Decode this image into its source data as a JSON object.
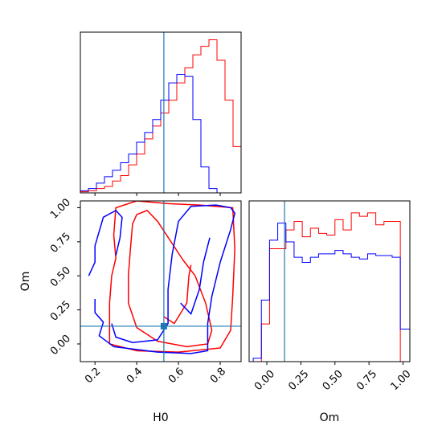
{
  "chart_data": {
    "type": "corner",
    "parameters": [
      "H0",
      "Om"
    ],
    "truth": {
      "H0": 0.53,
      "Om": 0.13
    },
    "colors": {
      "series_a": "#ff0000",
      "series_b": "#0000ff",
      "truth": "#1f77b4"
    },
    "axes": {
      "H0": {
        "range": [
          0.13,
          0.9
        ],
        "ticks": [
          0.2,
          0.4,
          0.6,
          0.8
        ],
        "tick_labels": [
          "0.2",
          "0.4",
          "0.6",
          "0.8"
        ],
        "label": "H0"
      },
      "Om": {
        "range": [
          -0.13,
          1.05
        ],
        "ticks": [
          0.0,
          0.25,
          0.5,
          0.75,
          1.0
        ],
        "tick_labels": [
          "0.00",
          "0.25",
          "0.50",
          "0.75",
          "1.00"
        ],
        "label": "Om"
      }
    },
    "hist_H0": {
      "bin_edges": [
        0.13,
        0.1685,
        0.207,
        0.2455,
        0.284,
        0.3225,
        0.361,
        0.3995,
        0.438,
        0.4765,
        0.515,
        0.5535,
        0.592,
        0.6305,
        0.669,
        0.7075,
        0.746,
        0.7845,
        0.823,
        0.8615,
        0.9
      ],
      "series": [
        {
          "values": [
            0.1,
            0.2,
            0.4,
            0.6,
            1.1,
            1.6,
            2.6,
            3.6,
            5.0,
            6.2,
            7.4,
            8.6,
            10.2,
            11.6,
            12.8,
            13.6,
            14.2,
            12.3,
            8.6,
            4.3
          ]
        },
        {
          "values": [
            0.2,
            0.4,
            0.9,
            1.5,
            2.1,
            2.8,
            3.6,
            4.7,
            5.6,
            6.8,
            8.6,
            10.2,
            11.0,
            10.8,
            6.8,
            2.4,
            0.4,
            0.0,
            0.0,
            0.0
          ]
        }
      ]
    },
    "hist_Om": {
      "bin_edges": [
        -0.1,
        -0.04,
        0.02,
        0.08,
        0.14,
        0.2,
        0.26,
        0.32,
        0.38,
        0.44,
        0.5,
        0.56,
        0.62,
        0.68,
        0.74,
        0.8,
        0.86,
        0.92,
        0.98,
        1.05
      ],
      "series": [
        {
          "values": [
            0.0,
            2.2,
            6.6,
            6.6,
            7.7,
            8.2,
            7.3,
            7.8,
            7.5,
            7.4,
            8.3,
            7.7,
            8.7,
            8.5,
            8.7,
            8.0,
            8.2,
            8.2,
            0.0
          ]
        },
        {
          "values": [
            0.2,
            3.6,
            7.1,
            8.1,
            7.0,
            6.1,
            5.8,
            6.1,
            6.3,
            6.3,
            6.5,
            6.3,
            6.1,
            6.0,
            6.3,
            6.2,
            6.2,
            6.1,
            1.9
          ]
        }
      ]
    },
    "contours": [
      {
        "series": 0,
        "points": [
          [
            0.27,
            0.0
          ],
          [
            0.27,
            0.3
          ],
          [
            0.28,
            0.5
          ],
          [
            0.3,
            0.63
          ],
          [
            0.29,
            0.8
          ],
          [
            0.3,
            1.0
          ],
          [
            0.4,
            1.05
          ],
          [
            0.55,
            1.03
          ],
          [
            0.7,
            1.02
          ],
          [
            0.86,
            1.0
          ],
          [
            0.87,
            0.7
          ],
          [
            0.86,
            0.35
          ],
          [
            0.85,
            0.1
          ],
          [
            0.8,
            -0.03
          ],
          [
            0.6,
            -0.06
          ],
          [
            0.4,
            -0.05
          ],
          [
            0.27,
            0.0
          ]
        ]
      },
      {
        "series": 0,
        "points": [
          [
            0.36,
            0.3
          ],
          [
            0.36,
            0.5
          ],
          [
            0.37,
            0.7
          ],
          [
            0.38,
            0.88
          ],
          [
            0.4,
            0.95
          ],
          [
            0.45,
            0.98
          ],
          [
            0.5,
            0.9
          ],
          [
            0.62,
            0.62
          ],
          [
            0.68,
            0.5
          ],
          [
            0.73,
            0.3
          ],
          [
            0.76,
            0.1
          ],
          [
            0.74,
            0.0
          ],
          [
            0.64,
            -0.02
          ],
          [
            0.5,
            0.02
          ],
          [
            0.4,
            0.12
          ],
          [
            0.36,
            0.3
          ]
        ]
      },
      {
        "series": 0,
        "points": [
          [
            0.53,
            0.2
          ],
          [
            0.58,
            0.15
          ],
          [
            0.64,
            0.3
          ],
          [
            0.65,
            0.5
          ],
          [
            0.66,
            0.58
          ]
        ]
      },
      {
        "series": 1,
        "points": [
          [
            0.17,
            0.5
          ],
          [
            0.2,
            0.6
          ],
          [
            0.2,
            0.72
          ],
          [
            0.24,
            0.93
          ],
          [
            0.3,
            0.98
          ],
          [
            0.33,
            0.93
          ],
          [
            0.32,
            0.78
          ],
          [
            0.3,
            0.65
          ]
        ]
      },
      {
        "series": 1,
        "points": [
          [
            0.2,
            0.33
          ],
          [
            0.2,
            0.23
          ],
          [
            0.24,
            0.16
          ],
          [
            0.22,
            0.06
          ],
          [
            0.29,
            -0.02
          ],
          [
            0.5,
            -0.06
          ],
          [
            0.66,
            -0.07
          ],
          [
            0.74,
            -0.05
          ],
          [
            0.74,
            0.15
          ],
          [
            0.76,
            0.35
          ],
          [
            0.8,
            0.6
          ],
          [
            0.85,
            0.84
          ],
          [
            0.87,
            0.96
          ],
          [
            0.85,
            1.0
          ],
          [
            0.78,
            1.02
          ],
          [
            0.66,
            1.01
          ],
          [
            0.6,
            0.9
          ],
          [
            0.57,
            0.66
          ],
          [
            0.55,
            0.4
          ],
          [
            0.55,
            0.15
          ],
          [
            0.5,
            0.03
          ],
          [
            0.38,
            0.01
          ],
          [
            0.3,
            0.05
          ],
          [
            0.28,
            0.15
          ]
        ]
      },
      {
        "series": 1,
        "points": [
          [
            0.61,
            0.3
          ],
          [
            0.66,
            0.22
          ],
          [
            0.7,
            0.4
          ],
          [
            0.72,
            0.6
          ],
          [
            0.75,
            0.78
          ]
        ]
      }
    ]
  }
}
